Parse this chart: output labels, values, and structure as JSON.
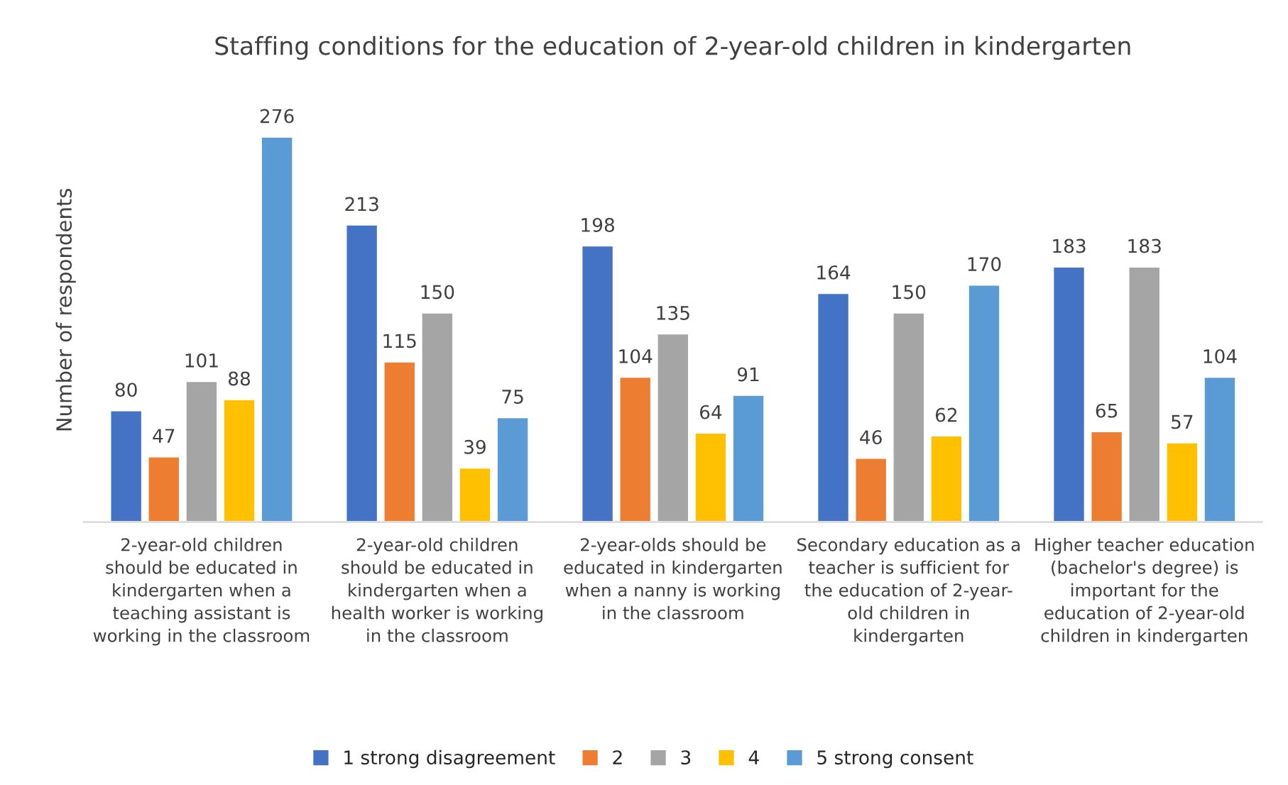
{
  "chart_data": {
    "type": "bar",
    "title": "Staffing conditions for the education of 2-year-old children in kindergarten",
    "ylabel": "Number of respondents",
    "categories": [
      "2-year-old children\nshould be educated in\nkindergarten when a\nteaching assistant is\nworking in the classroom",
      "2-year-old children\nshould be educated in\nkindergarten when a\nhealth worker is working\nin the classroom",
      "2-year-olds should be\neducated in kindergarten\nwhen a nanny is working\nin the classroom",
      "Secondary education as a\nteacher is sufficient for\nthe education of 2-year-\nold children in\nkindergarten",
      "Higher teacher education\n(bachelor's degree) is\nimportant for the\neducation of 2-year-old\nchildren in kindergarten"
    ],
    "series": [
      {
        "name": "1 strong disagreement",
        "color": "#4472c4",
        "values": [
          80,
          213,
          198,
          164,
          183
        ]
      },
      {
        "name": "2",
        "color": "#ed7d31",
        "values": [
          47,
          115,
          104,
          46,
          65
        ]
      },
      {
        "name": "3",
        "color": "#a5a5a5",
        "values": [
          101,
          150,
          135,
          150,
          183
        ]
      },
      {
        "name": "4",
        "color": "#ffc000",
        "values": [
          88,
          39,
          64,
          62,
          57
        ]
      },
      {
        "name": "5 strong consent",
        "color": "#5b9bd5",
        "values": [
          276,
          75,
          91,
          170,
          104
        ]
      }
    ],
    "data_labels": true,
    "legend": "bottom",
    "tick_labels": "x"
  }
}
